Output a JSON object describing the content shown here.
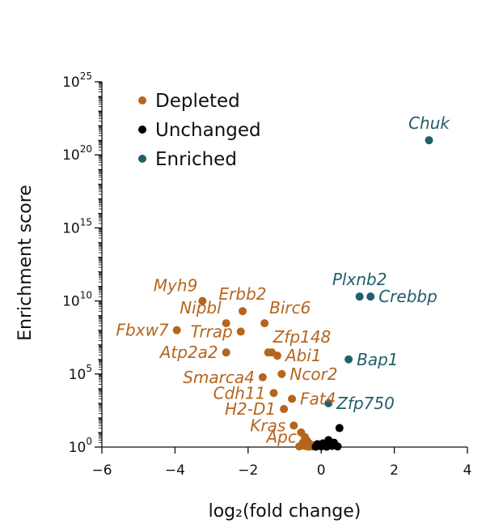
{
  "chart_data": {
    "type": "scatter",
    "xlabel": "log₂(fold change)",
    "ylabel": "Enrichment score",
    "xlim": [
      -6,
      4
    ],
    "ylim": [
      1,
      1e+25
    ],
    "yscale": "log",
    "x_ticks": [
      -6,
      -4,
      -2,
      0,
      2,
      4
    ],
    "x_tick_labels": [
      "−6",
      "−4",
      "−2",
      "0",
      "2",
      "4"
    ],
    "y_tick_exponents": [
      0,
      5,
      10,
      15,
      20,
      25
    ],
    "y_tick_base": "10",
    "grid": false,
    "legend_position": "top-left",
    "colors": {
      "Depleted": "#b5651d",
      "Unchanged": "#000000",
      "Enriched": "#215f6b"
    },
    "series": [
      {
        "name": "Depleted",
        "points": [
          {
            "x": -3.25,
            "y": 10000000000.0,
            "label": "Myh9",
            "label_pos": "upper-left"
          },
          {
            "x": -3.95,
            "y": 100000000.0,
            "label": "Fbxw7",
            "label_pos": "left"
          },
          {
            "x": -2.6,
            "y": 300000000.0,
            "label": "Nipbl",
            "label_pos": "upper-left"
          },
          {
            "x": -2.15,
            "y": 2000000000.0,
            "label": "Erbb2",
            "label_pos": "upper"
          },
          {
            "x": -2.2,
            "y": 80000000.0,
            "label": "Trrap",
            "label_pos": "left"
          },
          {
            "x": -1.55,
            "y": 300000000.0,
            "label": "Birc6",
            "label_pos": "upper-right"
          },
          {
            "x": -2.6,
            "y": 3000000.0,
            "label": "Atp2a2",
            "label_pos": "left"
          },
          {
            "x": -1.45,
            "y": 3000000.0,
            "label": "Zfp148",
            "label_pos": "upper-right"
          },
          {
            "x": -1.35,
            "y": 3000000.0
          },
          {
            "x": -1.2,
            "y": 1800000.0,
            "label": "Abi1",
            "label_pos": "right"
          },
          {
            "x": -1.6,
            "y": 60000.0,
            "label": "Smarca4",
            "label_pos": "left"
          },
          {
            "x": -1.08,
            "y": 100000.0,
            "label": "Ncor2",
            "label_pos": "right"
          },
          {
            "x": -1.3,
            "y": 5000.0,
            "label": "Cdh11",
            "label_pos": "left"
          },
          {
            "x": -0.8,
            "y": 2000.0,
            "label": "Fat4",
            "label_pos": "right"
          },
          {
            "x": -1.02,
            "y": 400,
            "label": "H2-D1",
            "label_pos": "left"
          },
          {
            "x": -0.75,
            "y": 30,
            "label": "Kras",
            "label_pos": "left"
          },
          {
            "x": -0.45,
            "y": 5,
            "label": "Apc",
            "label_pos": "left"
          },
          {
            "x": -0.55,
            "y": 10
          },
          {
            "x": -0.4,
            "y": 3
          },
          {
            "x": -0.35,
            "y": 2
          },
          {
            "x": -0.5,
            "y": 2
          },
          {
            "x": -0.3,
            "y": 1.5
          },
          {
            "x": -0.45,
            "y": 1.2
          },
          {
            "x": -0.25,
            "y": 1.1
          },
          {
            "x": -0.6,
            "y": 1.1
          },
          {
            "x": -0.35,
            "y": 1.05
          },
          {
            "x": -0.2,
            "y": 1.3
          }
        ]
      },
      {
        "name": "Unchanged",
        "points": [
          {
            "x": 0.5,
            "y": 20
          },
          {
            "x": 0.2,
            "y": 3
          },
          {
            "x": 0.35,
            "y": 2
          },
          {
            "x": 0.05,
            "y": 1.8
          },
          {
            "x": -0.1,
            "y": 1.6
          },
          {
            "x": 0.1,
            "y": 1.3
          },
          {
            "x": 0.3,
            "y": 1.2
          },
          {
            "x": 0.0,
            "y": 1.1
          },
          {
            "x": -0.15,
            "y": 1.05
          },
          {
            "x": 0.15,
            "y": 1.05
          },
          {
            "x": 0.45,
            "y": 1.1
          },
          {
            "x": 0.25,
            "y": 1.4
          }
        ]
      },
      {
        "name": "Enriched",
        "points": [
          {
            "x": 2.95,
            "y": 1e+21,
            "label": "Chuk",
            "label_pos": "upper"
          },
          {
            "x": 1.05,
            "y": 20000000000.0,
            "label": "Plxnb2",
            "label_pos": "upper"
          },
          {
            "x": 1.35,
            "y": 20000000000.0,
            "label": "Crebbp",
            "label_pos": "right"
          },
          {
            "x": 0.75,
            "y": 1000000.0,
            "label": "Bap1",
            "label_pos": "right"
          },
          {
            "x": 0.2,
            "y": 1000.0,
            "label": "Zfp750",
            "label_pos": "right"
          }
        ]
      }
    ]
  }
}
